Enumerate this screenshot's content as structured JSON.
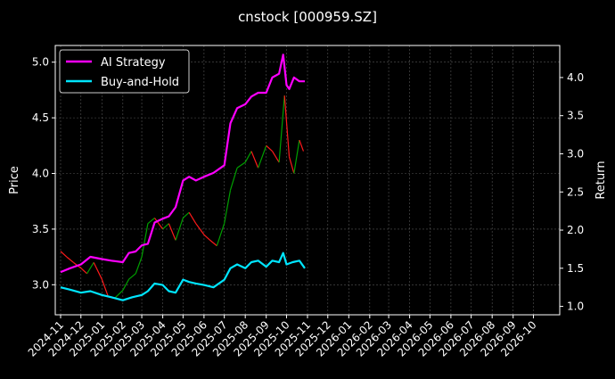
{
  "chart_data": {
    "type": "line",
    "title": "cnstock [000959.SZ]",
    "ylabel": "Price",
    "y2label": "Return",
    "x_range": [
      "2024-11-01",
      "2026-11-01"
    ],
    "ylim": [
      2.73,
      5.15
    ],
    "y2lim": [
      0.89,
      4.42
    ],
    "yticks": [
      "3.0",
      "3.5",
      "4.0",
      "4.5",
      "5.0"
    ],
    "y2ticks": [
      "1.0",
      "1.5",
      "2.0",
      "2.5",
      "3.0",
      "3.5",
      "4.0"
    ],
    "xticks": [
      "2024-11",
      "2024-12",
      "2025-01",
      "2025-02",
      "2025-03",
      "2025-04",
      "2025-05",
      "2025-06",
      "2025-07",
      "2025-08",
      "2025-09",
      "2025-10",
      "2025-11",
      "2025-12",
      "2026-01",
      "2026-02",
      "2026-03",
      "2026-04",
      "2026-05",
      "2026-06",
      "2026-07",
      "2026-08",
      "2026-09",
      "2026-10"
    ],
    "grid": true,
    "legend_position": "top-left",
    "price_colors": {
      "up": "#00a000",
      "down": "#ff1a1a"
    },
    "price": {
      "dates": [
        "2024-11-01",
        "2024-11-10",
        "2024-11-20",
        "2024-12-01",
        "2024-12-10",
        "2024-12-20",
        "2025-01-01",
        "2025-01-10",
        "2025-01-20",
        "2025-02-01",
        "2025-02-10",
        "2025-02-20",
        "2025-03-01",
        "2025-03-10",
        "2025-03-20",
        "2025-04-01",
        "2025-04-10",
        "2025-04-20",
        "2025-05-01",
        "2025-05-10",
        "2025-05-20",
        "2025-06-01",
        "2025-06-10",
        "2025-06-20",
        "2025-07-01",
        "2025-07-10",
        "2025-07-20",
        "2025-08-01",
        "2025-08-10",
        "2025-08-20",
        "2025-09-01",
        "2025-09-10",
        "2025-09-20",
        "2025-09-28",
        "2025-10-05",
        "2025-10-12",
        "2025-10-20",
        "2025-10-26"
      ],
      "close": [
        3.3,
        3.25,
        3.2,
        3.15,
        3.1,
        3.2,
        3.05,
        2.9,
        2.88,
        2.95,
        3.05,
        3.1,
        3.25,
        3.55,
        3.6,
        3.5,
        3.55,
        3.4,
        3.6,
        3.65,
        3.55,
        3.45,
        3.4,
        3.35,
        3.55,
        3.85,
        4.05,
        4.1,
        4.2,
        4.05,
        4.25,
        4.2,
        4.1,
        4.7,
        4.15,
        4.0,
        4.3,
        4.2
      ]
    },
    "series": [
      {
        "name": "AI Strategy",
        "color": "#ff00ff",
        "x": [
          "2024-11-01",
          "2024-11-15",
          "2024-12-01",
          "2024-12-15",
          "2025-01-01",
          "2025-01-15",
          "2025-02-01",
          "2025-02-10",
          "2025-02-20",
          "2025-03-01",
          "2025-03-10",
          "2025-03-20",
          "2025-04-01",
          "2025-04-10",
          "2025-04-20",
          "2025-05-01",
          "2025-05-10",
          "2025-05-20",
          "2025-06-01",
          "2025-06-15",
          "2025-07-01",
          "2025-07-10",
          "2025-07-20",
          "2025-08-01",
          "2025-08-10",
          "2025-08-20",
          "2025-09-01",
          "2025-09-10",
          "2025-09-20",
          "2025-09-26",
          "2025-10-01",
          "2025-10-05",
          "2025-10-12",
          "2025-10-20",
          "2025-10-28"
        ],
        "values": [
          1.45,
          1.5,
          1.55,
          1.65,
          1.62,
          1.6,
          1.58,
          1.7,
          1.72,
          1.8,
          1.82,
          2.1,
          2.15,
          2.18,
          2.3,
          2.65,
          2.7,
          2.65,
          2.7,
          2.75,
          2.85,
          3.4,
          3.6,
          3.65,
          3.75,
          3.8,
          3.8,
          4.0,
          4.05,
          4.3,
          3.9,
          3.85,
          4.0,
          3.95,
          3.95
        ]
      },
      {
        "name": "Buy-and-Hold",
        "color": "#00e5ff",
        "x": [
          "2024-11-01",
          "2024-11-15",
          "2024-12-01",
          "2024-12-15",
          "2025-01-01",
          "2025-01-15",
          "2025-02-01",
          "2025-02-15",
          "2025-03-01",
          "2025-03-10",
          "2025-03-20",
          "2025-04-01",
          "2025-04-10",
          "2025-04-20",
          "2025-05-01",
          "2025-05-10",
          "2025-05-20",
          "2025-06-01",
          "2025-06-15",
          "2025-07-01",
          "2025-07-10",
          "2025-07-20",
          "2025-08-01",
          "2025-08-10",
          "2025-08-20",
          "2025-09-01",
          "2025-09-10",
          "2025-09-20",
          "2025-09-26",
          "2025-10-01",
          "2025-10-10",
          "2025-10-20",
          "2025-10-28"
        ],
        "values": [
          1.25,
          1.22,
          1.18,
          1.2,
          1.15,
          1.12,
          1.08,
          1.12,
          1.15,
          1.2,
          1.3,
          1.28,
          1.2,
          1.18,
          1.35,
          1.32,
          1.3,
          1.28,
          1.25,
          1.35,
          1.5,
          1.55,
          1.5,
          1.58,
          1.6,
          1.52,
          1.6,
          1.58,
          1.7,
          1.55,
          1.58,
          1.6,
          1.5
        ]
      }
    ]
  }
}
